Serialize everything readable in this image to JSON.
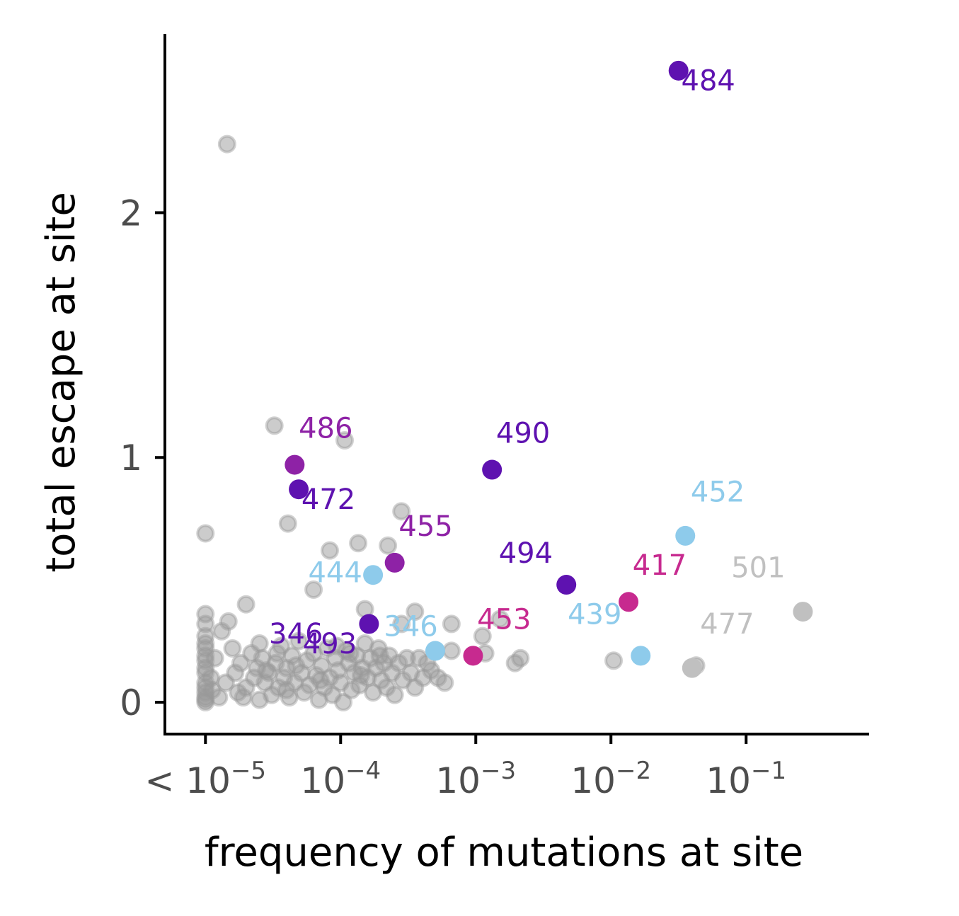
{
  "chart_data": {
    "type": "scatter",
    "xlabel": "frequency of mutations at site",
    "ylabel": "total escape at site",
    "x_scale": "log10",
    "xlim": [
      -5.3,
      -0.09
    ],
    "ylim": [
      -0.13,
      2.73
    ],
    "x_ticks": [
      {
        "value": -5,
        "label": "< 10",
        "exp": "−5"
      },
      {
        "value": -4,
        "label": "10",
        "exp": "−4"
      },
      {
        "value": -3,
        "label": "10",
        "exp": "−3"
      },
      {
        "value": -2,
        "label": "10",
        "exp": "−2"
      },
      {
        "value": -1,
        "label": "10",
        "exp": "−1"
      }
    ],
    "y_ticks": [
      {
        "value": 0,
        "label": "0"
      },
      {
        "value": 1,
        "label": "1"
      },
      {
        "value": 2,
        "label": "2"
      }
    ],
    "colors": {
      "other": "#999999",
      "dark_purple": "#5e12b0",
      "purple": "#8e22a6",
      "magenta": "#c72a8f",
      "light_blue": "#8ecbeb",
      "light_gray": "#c0c0c0"
    },
    "highlighted": [
      {
        "site": "484",
        "log10_freq": -1.5,
        "escape": 2.58,
        "color": "#5e12b0",
        "label_dx": 0.02,
        "label_dy": -0.08
      },
      {
        "site": "486",
        "log10_freq": -4.34,
        "escape": 0.97,
        "color": "#8e22a6",
        "label_dx": 0.03,
        "label_dy": 0.11
      },
      {
        "site": "472",
        "log10_freq": -4.31,
        "escape": 0.87,
        "color": "#5e12b0",
        "label_dx": 0.02,
        "label_dy": -0.08
      },
      {
        "site": "490",
        "log10_freq": -2.88,
        "escape": 0.95,
        "color": "#5e12b0",
        "label_dx": 0.03,
        "label_dy": 0.11
      },
      {
        "site": "452",
        "log10_freq": -1.45,
        "escape": 0.68,
        "color": "#8ecbeb",
        "label_dx": 0.04,
        "label_dy": 0.14
      },
      {
        "site": "455",
        "log10_freq": -3.6,
        "escape": 0.57,
        "color": "#8e22a6",
        "label_dx": 0.03,
        "label_dy": 0.11
      },
      {
        "site": "444",
        "log10_freq": -3.76,
        "escape": 0.52,
        "color": "#8ecbeb",
        "label_dx": -0.48,
        "label_dy": -0.03
      },
      {
        "site": "494",
        "log10_freq": -2.33,
        "escape": 0.48,
        "color": "#5e12b0",
        "label_dx": -0.5,
        "label_dy": 0.09
      },
      {
        "site": "417",
        "log10_freq": -1.87,
        "escape": 0.41,
        "color": "#c72a8f",
        "label_dx": 0.03,
        "label_dy": 0.11
      },
      {
        "site": "346",
        "log10_freq": -3.79,
        "escape": 0.32,
        "color": "#5e12b0",
        "label_dx": -0.74,
        "label_dy": -0.08
      },
      {
        "site": "453",
        "log10_freq": -3.02,
        "escape": 0.19,
        "color": "#c72a8f",
        "label_dx": 0.03,
        "label_dy": 0.11
      },
      {
        "site": "439",
        "log10_freq": -1.78,
        "escape": 0.19,
        "color": "#8ecbeb",
        "label_dx": -0.54,
        "label_dy": 0.13
      },
      {
        "site": "477",
        "log10_freq": -1.4,
        "escape": 0.14,
        "color": "#c0c0c0",
        "label_dx": 0.06,
        "label_dy": 0.14
      },
      {
        "site": "501",
        "log10_freq": -0.58,
        "escape": 0.37,
        "color": "#c0c0c0",
        "label_dx": -0.53,
        "label_dy": 0.14
      },
      {
        "site": "",
        "log10_freq": -3.3,
        "escape": 0.21,
        "color": "#8ecbeb",
        "label_dx": 0,
        "label_dy": 0
      }
    ],
    "extra_labels": [
      {
        "text": "346",
        "log10_freq": -3.75,
        "escape": 0.33,
        "color": "#8ecbeb",
        "dx": 0.07,
        "dy": -0.06
      },
      {
        "text": "493",
        "log10_freq": -3.78,
        "escape": 0.3,
        "color": "#5e12b0",
        "dx": -0.5,
        "dy": -0.1
      }
    ],
    "other_sites": [
      [
        -4.84,
        2.28
      ],
      [
        -4.49,
        1.13
      ],
      [
        -3.97,
        1.07
      ],
      [
        -5.0,
        0.69
      ],
      [
        -4.39,
        0.73
      ],
      [
        -3.55,
        0.78
      ],
      [
        -4.08,
        0.62
      ],
      [
        -3.87,
        0.65
      ],
      [
        -3.65,
        0.64
      ],
      [
        -4.7,
        0.4
      ],
      [
        -4.2,
        0.46
      ],
      [
        -3.82,
        0.38
      ],
      [
        -3.45,
        0.37
      ],
      [
        -2.82,
        0.34
      ],
      [
        -2.95,
        0.27
      ],
      [
        -2.93,
        0.2
      ],
      [
        -2.71,
        0.16
      ],
      [
        -2.67,
        0.18
      ],
      [
        -3.18,
        0.32
      ],
      [
        -3.18,
        0.21
      ],
      [
        -3.55,
        0.32
      ],
      [
        -3.23,
        0.08
      ],
      [
        -1.98,
        0.17
      ],
      [
        -1.37,
        0.15
      ],
      [
        -5.0,
        0.36
      ],
      [
        -5.0,
        0.32
      ],
      [
        -5.0,
        0.27
      ],
      [
        -5.0,
        0.22
      ],
      [
        -5.0,
        0.17
      ],
      [
        -5.0,
        0.12
      ],
      [
        -5.0,
        0.08
      ],
      [
        -5.0,
        0.04
      ],
      [
        -5.0,
        0.01
      ],
      [
        -5.0,
        0.24
      ],
      [
        -5.0,
        0.19
      ],
      [
        -5.0,
        0.14
      ],
      [
        -5.0,
        0.06
      ],
      [
        -5.0,
        0.02
      ],
      [
        -5.0,
        0.0
      ],
      [
        -4.96,
        0.1
      ],
      [
        -4.95,
        0.05
      ],
      [
        -4.93,
        0.18
      ],
      [
        -4.9,
        0.02
      ],
      [
        -4.88,
        0.29
      ],
      [
        -4.85,
        0.08
      ],
      [
        -4.83,
        0.33
      ],
      [
        -4.8,
        0.22
      ],
      [
        -4.78,
        0.12
      ],
      [
        -4.76,
        0.04
      ],
      [
        -4.74,
        0.16
      ],
      [
        -4.72,
        0.02
      ],
      [
        -4.7,
        0.06
      ],
      [
        -4.66,
        0.2
      ],
      [
        -4.64,
        0.1
      ],
      [
        -4.62,
        0.14
      ],
      [
        -4.6,
        0.01
      ],
      [
        -4.58,
        0.18
      ],
      [
        -4.56,
        0.08
      ],
      [
        -4.53,
        0.12
      ],
      [
        -4.51,
        0.03
      ],
      [
        -4.48,
        0.16
      ],
      [
        -4.46,
        0.06
      ],
      [
        -4.44,
        0.23
      ],
      [
        -4.42,
        0.1
      ],
      [
        -4.4,
        0.14
      ],
      [
        -4.38,
        0.02
      ],
      [
        -4.36,
        0.19
      ],
      [
        -4.34,
        0.08
      ],
      [
        -4.31,
        0.25
      ],
      [
        -4.29,
        0.12
      ],
      [
        -4.27,
        0.04
      ],
      [
        -4.25,
        0.17
      ],
      [
        -4.23,
        0.07
      ],
      [
        -4.2,
        0.2
      ],
      [
        -4.18,
        0.11
      ],
      [
        -4.16,
        0.01
      ],
      [
        -4.14,
        0.15
      ],
      [
        -4.12,
        0.06
      ],
      [
        -4.1,
        0.22
      ],
      [
        -4.08,
        0.1
      ],
      [
        -4.06,
        0.03
      ],
      [
        -4.04,
        0.18
      ],
      [
        -4.02,
        0.13
      ],
      [
        -4.0,
        0.08
      ],
      [
        -3.98,
        0.0
      ],
      [
        -3.96,
        0.21
      ],
      [
        -3.94,
        0.16
      ],
      [
        -3.92,
        0.05
      ],
      [
        -3.9,
        0.12
      ],
      [
        -3.88,
        0.19
      ],
      [
        -3.86,
        0.07
      ],
      [
        -3.84,
        0.14
      ],
      [
        -3.82,
        0.24
      ],
      [
        -3.8,
        0.1
      ],
      [
        -3.78,
        0.18
      ],
      [
        -3.76,
        0.04
      ],
      [
        -3.74,
        0.14
      ],
      [
        -3.72,
        0.22
      ],
      [
        -3.7,
        0.09
      ],
      [
        -3.68,
        0.16
      ],
      [
        -3.66,
        0.06
      ],
      [
        -3.64,
        0.19
      ],
      [
        -3.62,
        0.12
      ],
      [
        -3.6,
        0.03
      ],
      [
        -3.57,
        0.16
      ],
      [
        -3.54,
        0.09
      ],
      [
        -3.51,
        0.18
      ],
      [
        -3.48,
        0.12
      ],
      [
        -3.45,
        0.06
      ],
      [
        -3.42,
        0.18
      ],
      [
        -3.39,
        0.1
      ],
      [
        -3.36,
        0.16
      ],
      [
        -3.33,
        0.13
      ],
      [
        -3.28,
        0.1
      ],
      [
        -4.33,
        0.15
      ],
      [
        -4.47,
        0.2
      ],
      [
        -4.6,
        0.24
      ],
      [
        -4.4,
        0.05
      ],
      [
        -4.03,
        0.23
      ],
      [
        -3.93,
        0.2
      ],
      [
        -4.15,
        0.09
      ],
      [
        -4.55,
        0.13
      ],
      [
        -3.71,
        0.19
      ],
      [
        -3.85,
        0.11
      ]
    ]
  }
}
